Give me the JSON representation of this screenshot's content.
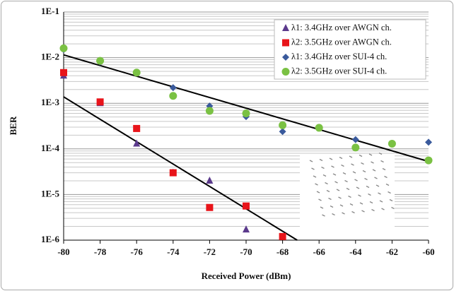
{
  "chart_data": {
    "type": "scatter",
    "x_label": "Received Power (dBm)",
    "y_label": "BER",
    "xlim": [
      -80,
      -60
    ],
    "xticks": [
      -80,
      -78,
      -76,
      -74,
      -72,
      -70,
      -68,
      -66,
      -64,
      -62,
      -60
    ],
    "ylim": [
      1e-06,
      0.1
    ],
    "log_y": true,
    "grid": true,
    "legend_position": "upper right",
    "yticks": [
      {
        "value": 0.1,
        "label": "1E-1"
      },
      {
        "value": 0.01,
        "label": "1E-2"
      },
      {
        "value": 0.001,
        "label": "1E-3"
      },
      {
        "value": 0.0001,
        "label": "1E-4"
      },
      {
        "value": 1e-05,
        "label": "1E-5"
      },
      {
        "value": 1e-06,
        "label": "1E-6"
      }
    ],
    "series": [
      {
        "name": "λ1: 3.4GHz over AWGN ch.",
        "color": "#5b3a8c",
        "marker": "triangle",
        "x": [
          -80,
          -78,
          -76,
          -74,
          -72,
          -70
        ],
        "values": [
          0.004,
          0.001,
          0.00013,
          3e-05,
          2e-05,
          1.7e-06
        ]
      },
      {
        "name": "λ2: 3.5GHz over AWGN ch.",
        "color": "#e8141a",
        "marker": "square",
        "x": [
          -80,
          -78,
          -76,
          -74,
          -72,
          -70,
          -68
        ],
        "values": [
          0.0047,
          0.00107,
          0.00028,
          3e-05,
          5.2e-06,
          5.6e-06,
          1.2e-06
        ]
      },
      {
        "name": "λ1: 3.4GHz over SUI-4 ch.",
        "color": "#3a5a9c",
        "marker": "diamond",
        "x": [
          -80,
          -78,
          -76,
          -74,
          -72,
          -70,
          -68,
          -64,
          -60
        ],
        "values": [
          0.015,
          0.008,
          0.0047,
          0.0022,
          0.00087,
          0.00051,
          0.00024,
          0.00016,
          0.00014
        ]
      },
      {
        "name": "λ2: 3.5GHz over SUI-4 ch.",
        "color": "#7ac143",
        "marker": "circle",
        "x": [
          -80,
          -78,
          -76,
          -74,
          -72,
          -70,
          -68,
          -66,
          -64,
          -62,
          -60
        ],
        "values": [
          0.016,
          0.0085,
          0.0047,
          0.00145,
          0.00068,
          0.0006,
          0.00033,
          0.00029,
          0.000107,
          0.00013,
          5.6e-05
        ]
      }
    ],
    "trendlines": [
      {
        "x": [
          -80,
          -60
        ],
        "y": [
          0.0115,
          5.3e-05
        ],
        "color": "#000000"
      },
      {
        "x": [
          -80,
          -67.2
        ],
        "y": [
          0.00138,
          1e-06
        ],
        "color": "#000000"
      }
    ]
  }
}
